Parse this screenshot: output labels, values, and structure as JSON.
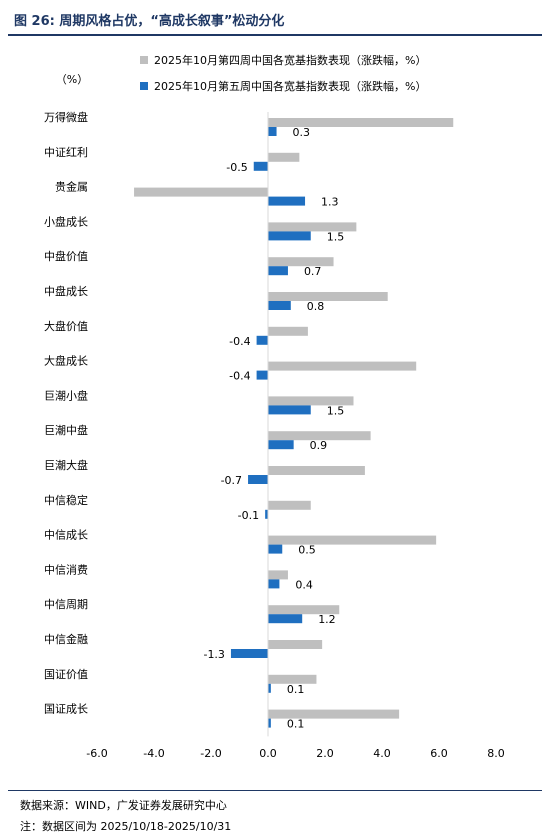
{
  "figure": {
    "title": "图 26:  周期风格占优，“高成长叙事”松动分化",
    "source": "数据来源：WIND，广发证券发展研究中心",
    "note": "注：数据区间为 2025/10/18-2025/10/31"
  },
  "colors": {
    "title": "#1f3864",
    "series1": "#bfbfbf",
    "series2": "#1f6fc0"
  },
  "chart_data": {
    "type": "bar",
    "orientation": "horizontal",
    "ylabel": "（%）",
    "categories": [
      "万得微盘",
      "中证红利",
      "贵金属",
      "小盘成长",
      "中盘价值",
      "中盘成长",
      "大盘价值",
      "大盘成长",
      "巨潮小盘",
      "巨潮中盘",
      "巨潮大盘",
      "中信稳定",
      "中信成长",
      "中信消费",
      "中信周期",
      "中信金融",
      "国证价值",
      "国证成长"
    ],
    "series": [
      {
        "name": "2025年10月第四周中国各宽基指数表现（涨跌幅，%）",
        "color": "#bfbfbf",
        "values": [
          6.5,
          1.1,
          -4.7,
          3.1,
          2.3,
          4.2,
          1.4,
          5.2,
          3.0,
          3.6,
          3.4,
          1.5,
          5.9,
          0.7,
          2.5,
          1.9,
          1.7,
          4.6
        ]
      },
      {
        "name": "2025年10月第五周中国各宽基指数表现（涨跌幅，%）",
        "color": "#1f6fc0",
        "values": [
          0.3,
          -0.5,
          1.3,
          1.5,
          0.7,
          0.8,
          -0.4,
          -0.4,
          1.5,
          0.9,
          -0.7,
          -0.1,
          0.5,
          0.4,
          1.2,
          -1.3,
          0.1,
          0.1
        ],
        "labels": [
          "0.3",
          "-0.5",
          "1.3",
          "1.5",
          "0.7",
          "0.8",
          "-0.4",
          "-0.4",
          "1.5",
          "0.9",
          "-0.7",
          "-0.1",
          "0.5",
          "0.4",
          "1.2",
          "-1.3",
          "0.1",
          "0.1"
        ]
      }
    ],
    "xlim": [
      -6.0,
      8.0
    ],
    "xticks": [
      "-6.0",
      "-4.0",
      "-2.0",
      "0.0",
      "2.0",
      "4.0",
      "6.0",
      "8.0"
    ],
    "xtick_values": [
      -6,
      -4,
      -2,
      0,
      2,
      4,
      6,
      8
    ],
    "legend_position": "top",
    "grid": false
  }
}
